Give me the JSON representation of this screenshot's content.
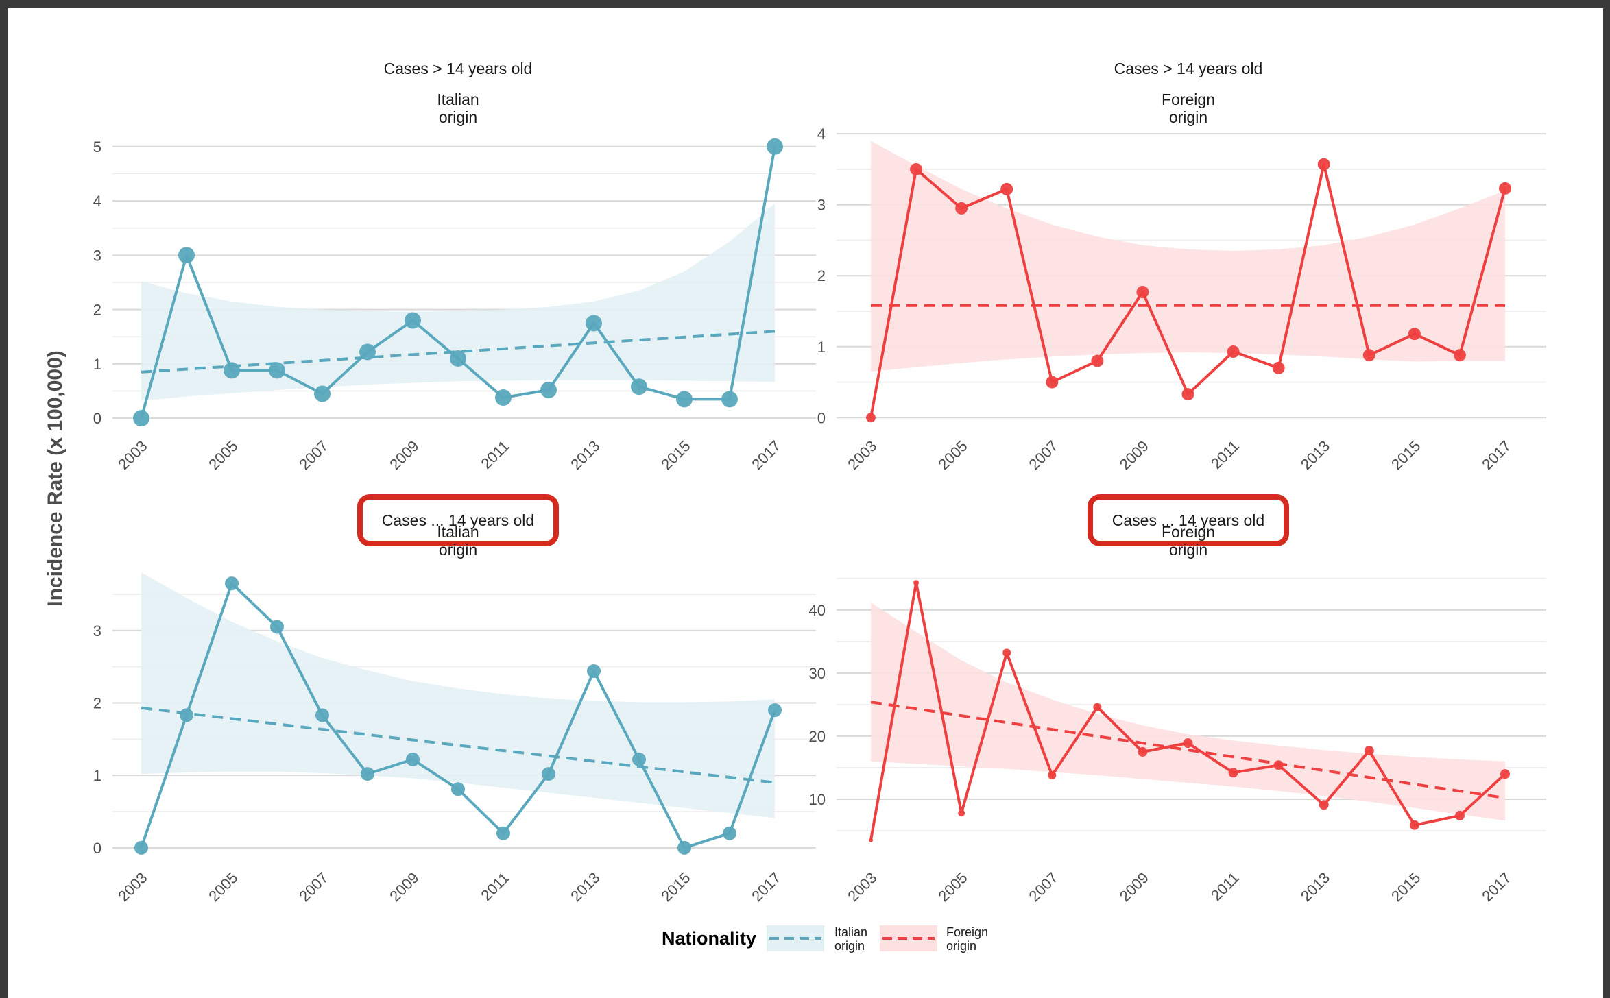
{
  "colors": {
    "italian": "#5aa8bd",
    "italian_fill": "#e3f1f5",
    "foreign": "#ee4040",
    "foreign_fill": "#fde0e0",
    "grid": "#d9d9d9",
    "highlight": "#d42a1f"
  },
  "y_axis_label": "Incidence Rate (x 100,000)",
  "legend": {
    "title": "Nationality",
    "items": [
      {
        "line1": "Italian",
        "line2": "origin",
        "color": "#5aa8bd",
        "fill": "#e3f1f5"
      },
      {
        "line1": "Foreign",
        "line2": "origin",
        "color": "#ee4040",
        "fill": "#fde0e0"
      }
    ]
  },
  "chart_data": [
    {
      "type": "line",
      "facet": "top-left",
      "strip_title": "Cases > 14 years old",
      "subtitle_line1": "Italian",
      "subtitle_line2": "origin",
      "highlighted": false,
      "color": "#5aa8bd",
      "fill": "#e3f1f5",
      "x": [
        2003,
        2004,
        2005,
        2006,
        2007,
        2008,
        2009,
        2010,
        2011,
        2012,
        2013,
        2014,
        2015,
        2016,
        2017
      ],
      "values": [
        0,
        3.0,
        0.88,
        0.88,
        0.45,
        1.22,
        1.8,
        1.1,
        0.38,
        0.52,
        1.75,
        0.58,
        0.35,
        0.35,
        5.0
      ],
      "point_sizes": [
        12,
        12,
        12,
        12,
        12,
        12,
        12,
        12,
        12,
        12,
        12,
        12,
        12,
        12,
        12
      ],
      "trend": [
        0.85,
        1.6
      ],
      "band_upper": [
        2.52,
        2.3,
        2.15,
        2.05,
        2.0,
        1.97,
        1.96,
        1.97,
        2.0,
        2.05,
        2.15,
        2.35,
        2.7,
        3.25,
        3.95
      ],
      "band_lower": [
        0.32,
        0.4,
        0.46,
        0.52,
        0.57,
        0.62,
        0.65,
        0.68,
        0.69,
        0.7,
        0.7,
        0.7,
        0.69,
        0.68,
        0.67
      ],
      "ylim": [
        -0.25,
        5.3
      ],
      "yticks": [
        0,
        1,
        2,
        3,
        4,
        5
      ],
      "xticks": [
        "2003",
        "2005",
        "2007",
        "2009",
        "2011",
        "2013",
        "2015",
        "2017"
      ]
    },
    {
      "type": "line",
      "facet": "top-right",
      "strip_title": "Cases > 14 years old",
      "subtitle_line1": "Foreign",
      "subtitle_line2": "origin",
      "highlighted": false,
      "color": "#ee4040",
      "fill": "#fde0e0",
      "x": [
        2003,
        2004,
        2005,
        2006,
        2007,
        2008,
        2009,
        2010,
        2011,
        2012,
        2013,
        2014,
        2015,
        2016,
        2017
      ],
      "values": [
        0,
        3.5,
        2.95,
        3.22,
        0.5,
        0.8,
        1.77,
        0.33,
        0.93,
        0.7,
        3.57,
        0.88,
        1.18,
        0.88,
        3.23
      ],
      "point_sizes": [
        7,
        9,
        9,
        9,
        9,
        9,
        9,
        9,
        9,
        9,
        9,
        9,
        9,
        9,
        9
      ],
      "trend": [
        1.58,
        1.58
      ],
      "band_upper": [
        3.9,
        3.55,
        3.22,
        2.95,
        2.72,
        2.55,
        2.43,
        2.37,
        2.35,
        2.37,
        2.43,
        2.55,
        2.72,
        2.95,
        3.2
      ],
      "band_lower": [
        0.65,
        0.71,
        0.77,
        0.82,
        0.86,
        0.89,
        0.91,
        0.92,
        0.91,
        0.89,
        0.86,
        0.82,
        0.79,
        0.8,
        0.8
      ],
      "ylim": [
        -0.2,
        4.05
      ],
      "yticks": [
        0,
        1,
        2,
        3,
        4
      ],
      "xticks": [
        "2003",
        "2005",
        "2007",
        "2009",
        "2011",
        "2013",
        "2015",
        "2017"
      ]
    },
    {
      "type": "line",
      "facet": "bottom-left",
      "strip_title": "Cases ... 14 years old",
      "subtitle_line1": "Italian",
      "subtitle_line2": "origin",
      "highlighted": true,
      "color": "#5aa8bd",
      "fill": "#e3f1f5",
      "x": [
        2003,
        2004,
        2005,
        2006,
        2007,
        2008,
        2009,
        2010,
        2011,
        2012,
        2013,
        2014,
        2015,
        2016,
        2017
      ],
      "values": [
        0,
        1.83,
        3.65,
        3.05,
        1.83,
        1.02,
        1.22,
        0.81,
        0.2,
        1.02,
        2.44,
        1.22,
        0,
        0.2,
        1.9
      ],
      "point_sizes": [
        10,
        10,
        10,
        10,
        10,
        10,
        10,
        10,
        10,
        10,
        10,
        10,
        10,
        10,
        10
      ],
      "trend": [
        1.93,
        0.9
      ],
      "band_upper": [
        3.8,
        3.45,
        3.12,
        2.85,
        2.62,
        2.45,
        2.3,
        2.2,
        2.12,
        2.06,
        2.03,
        2.01,
        2.01,
        2.02,
        2.05
      ],
      "band_lower": [
        1.02,
        1.04,
        1.05,
        1.05,
        1.03,
        1.0,
        0.96,
        0.9,
        0.83,
        0.76,
        0.69,
        0.62,
        0.55,
        0.48,
        0.41
      ],
      "ylim": [
        -0.2,
        3.85
      ],
      "yticks": [
        0,
        1,
        2,
        3
      ],
      "xticks": [
        "2003",
        "2005",
        "2007",
        "2009",
        "2011",
        "2013",
        "2015",
        "2017"
      ]
    },
    {
      "type": "line",
      "facet": "bottom-right",
      "strip_title": "Cases ... 14 years old",
      "subtitle_line1": "Foreign",
      "subtitle_line2": "origin",
      "highlighted": true,
      "color": "#ee4040",
      "fill": "#fde0e0",
      "x": [
        2003,
        2004,
        2005,
        2006,
        2007,
        2008,
        2009,
        2010,
        2011,
        2012,
        2013,
        2014,
        2015,
        2016,
        2017
      ],
      "values": [
        3.5,
        44.3,
        7.8,
        33.2,
        13.8,
        24.6,
        17.5,
        18.9,
        14.2,
        15.4,
        9.1,
        17.7,
        5.9,
        7.4,
        14.0
      ],
      "point_sizes": [
        3,
        4,
        5,
        6,
        6,
        6,
        7,
        7,
        7,
        7,
        7,
        7,
        7,
        7,
        7
      ],
      "trend": [
        25.4,
        10.2
      ],
      "band_upper": [
        41.2,
        36.5,
        32.0,
        28.5,
        25.8,
        23.5,
        21.7,
        20.3,
        19.3,
        18.5,
        17.8,
        17.2,
        16.7,
        16.3,
        16.0
      ],
      "band_lower": [
        16.0,
        15.6,
        15.2,
        14.8,
        14.3,
        13.8,
        13.2,
        12.6,
        12.0,
        11.3,
        10.5,
        9.6,
        8.6,
        7.6,
        6.6
      ],
      "ylim": [
        0,
        46.5
      ],
      "yticks": [
        10,
        20,
        30,
        40
      ],
      "xticks": [
        "2003",
        "2005",
        "2007",
        "2009",
        "2011",
        "2013",
        "2015",
        "2017"
      ]
    }
  ]
}
